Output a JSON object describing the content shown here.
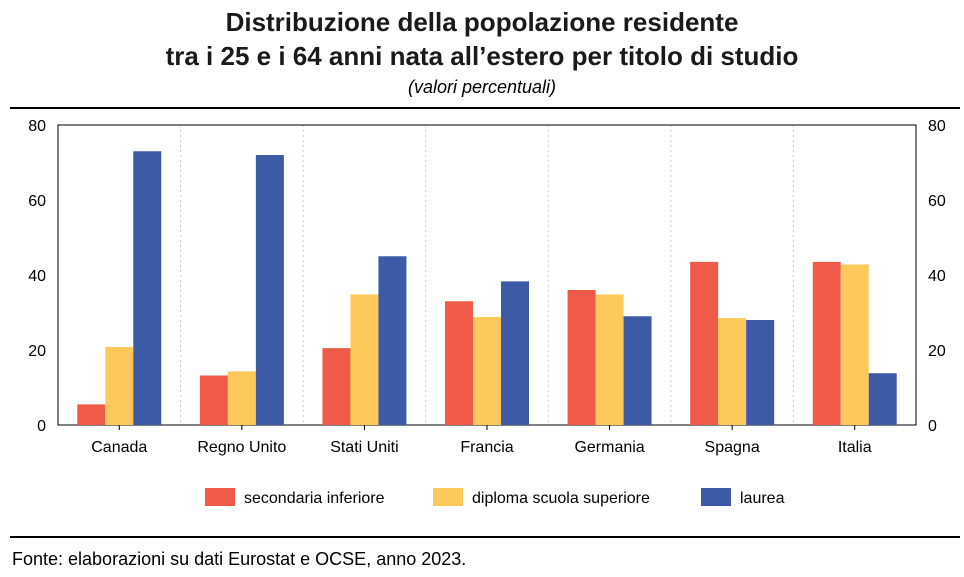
{
  "colors": {
    "secondaria": "#ef5b48",
    "diploma": "#fdc95a",
    "laurea": "#3d5aa6"
  },
  "chart_data": {
    "type": "bar",
    "title_line1": "Distribuzione della popolazione residente",
    "title_line2": "tra i 25 e i 64 anni nata all’estero per titolo di studio",
    "subtitle": "(valori percentuali)",
    "categories": [
      "Canada",
      "Regno Unito",
      "Stati Uniti",
      "Francia",
      "Germania",
      "Spagna",
      "Italia"
    ],
    "series": [
      {
        "name": "secondaria inferiore",
        "color_key": "secondaria",
        "values": [
          5.5,
          13.2,
          20.5,
          33.0,
          36.0,
          43.5,
          43.5
        ]
      },
      {
        "name": "diploma scuola superiore",
        "color_key": "diploma",
        "values": [
          20.8,
          14.3,
          34.8,
          28.8,
          34.8,
          28.5,
          42.8
        ]
      },
      {
        "name": "laurea",
        "color_key": "laurea",
        "values": [
          73.0,
          72.0,
          45.0,
          38.3,
          29.0,
          28.0,
          13.8
        ]
      }
    ],
    "ylim": [
      0,
      80
    ],
    "yticks": [
      0,
      20,
      40,
      60,
      80
    ],
    "grid": "vertical-dashed",
    "legend_position": "bottom",
    "source": "Fonte: elaborazioni su dati Eurostat e OCSE, anno 2023."
  }
}
